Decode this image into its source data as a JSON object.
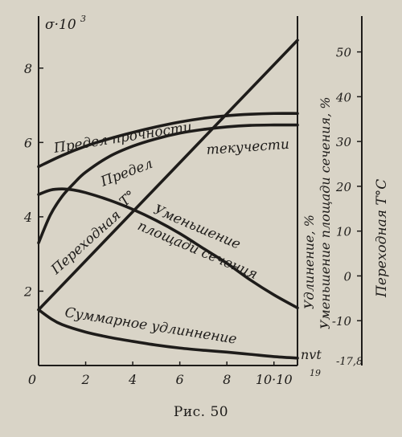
{
  "caption": "Рис. 50",
  "chart_data": {
    "type": "line",
    "x_axis": {
      "range": [
        0,
        11
      ],
      "ticks": [
        0,
        2,
        4,
        6,
        8,
        10
      ],
      "tick_labels": [
        "0",
        "2",
        "4",
        "6",
        "8",
        "10·10"
      ],
      "exponent": "19",
      "unit_label": "nvt"
    },
    "left_axis": {
      "label": "σ·10",
      "label_exponent": "3",
      "range": [
        0,
        9.4
      ],
      "ticks": [
        2,
        4,
        6,
        8
      ],
      "tick_labels": [
        "2",
        "4",
        "6",
        "8"
      ]
    },
    "middle_axis": {
      "label_1": "Удлинение, %",
      "label_2": "Уменьшение площади сечения, %"
    },
    "right_axis": {
      "label": "Переходная Т°С",
      "range": [
        -20,
        58
      ],
      "ticks": [
        -10,
        0,
        10,
        20,
        30,
        40,
        50
      ],
      "tick_labels": [
        "-10",
        "0",
        "10",
        "20",
        "30",
        "40",
        "50"
      ],
      "min_label": "-17,8"
    },
    "series": [
      {
        "name": "Предел прочности",
        "axis": "left",
        "x": [
          0,
          1,
          2,
          3,
          4,
          5,
          6,
          7,
          8,
          9,
          10,
          11
        ],
        "y": [
          5.35,
          5.65,
          5.9,
          6.1,
          6.27,
          6.42,
          6.55,
          6.65,
          6.72,
          6.76,
          6.78,
          6.78
        ]
      },
      {
        "name": "Предел текучести",
        "axis": "left",
        "x": [
          0,
          0.5,
          1,
          1.5,
          2,
          3,
          4,
          5,
          6,
          7,
          8,
          9,
          10,
          11
        ],
        "y": [
          3.3,
          4.05,
          4.55,
          4.9,
          5.2,
          5.62,
          5.9,
          6.1,
          6.25,
          6.35,
          6.42,
          6.46,
          6.47,
          6.47
        ]
      },
      {
        "name": "Уменьшение площади сечения",
        "axis": "left",
        "x": [
          0,
          0.5,
          1,
          1.5,
          2,
          3,
          4,
          5,
          6,
          7,
          8,
          9,
          10,
          11
        ],
        "y": [
          4.6,
          4.72,
          4.75,
          4.72,
          4.65,
          4.45,
          4.2,
          3.9,
          3.55,
          3.15,
          2.75,
          2.3,
          1.9,
          1.55
        ]
      },
      {
        "name": "Переходная Т°",
        "axis": "left",
        "x": [
          0,
          11
        ],
        "y": [
          1.5,
          8.75
        ]
      },
      {
        "name": "Суммарное удлинение",
        "axis": "left",
        "x": [
          0,
          0.5,
          1,
          2,
          3,
          4,
          5,
          6,
          7,
          8,
          9,
          10,
          11
        ],
        "y": [
          1.5,
          1.27,
          1.1,
          0.9,
          0.76,
          0.65,
          0.55,
          0.47,
          0.41,
          0.36,
          0.3,
          0.24,
          0.2
        ]
      }
    ],
    "annotations": [
      {
        "text": "Предел прочности"
      },
      {
        "text": "Предел"
      },
      {
        "text": "текучести"
      },
      {
        "text": "Переходная"
      },
      {
        "text": "Т°"
      },
      {
        "text": "Уменьшение"
      },
      {
        "text": "площади сечения"
      },
      {
        "text": "Суммарное удлиннение"
      }
    ]
  }
}
